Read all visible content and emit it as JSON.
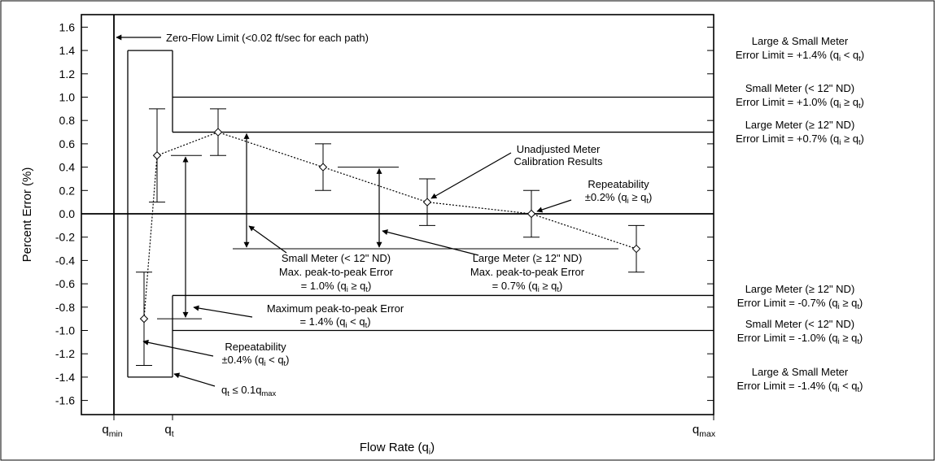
{
  "chart_data": {
    "type": "scatter",
    "ylabel": "Percent Error (%)",
    "xlabel": "Flow Rate (q",
    "xlabel_sub": "i",
    "xlabel_tail": ")",
    "ylim": [
      -1.7,
      1.7
    ],
    "y_ticks": [
      1.6,
      1.4,
      1.2,
      1.0,
      0.8,
      0.6,
      0.4,
      0.2,
      0.0,
      -0.2,
      -0.4,
      -0.6,
      -0.8,
      -1.0,
      -1.2,
      -1.4,
      -1.6
    ],
    "y_tick_labels": [
      "1.6",
      "1.4",
      "1.2",
      "1.0",
      "0.8",
      "0.6",
      "0.4",
      "0.2",
      "0.0",
      "-0.2",
      "-0.4",
      "-0.6",
      "-0.8",
      "-1.0",
      "-1.2",
      "-1.4",
      "-1.6"
    ],
    "x_tick_labels": [
      {
        "main": "q",
        "sub": "min"
      },
      {
        "main": "q",
        "sub": "t"
      },
      {
        "main": "q",
        "sub": "max"
      }
    ],
    "series": [
      {
        "points": [
          {
            "y": -0.9,
            "err": 0.4
          },
          {
            "y": 0.5,
            "err": 0.4
          },
          {
            "y": 0.7,
            "err": 0.2
          },
          {
            "y": 0.4,
            "err": 0.2
          },
          {
            "y": 0.1,
            "err": 0.2
          },
          {
            "y": 0.0,
            "err": 0.2
          },
          {
            "y": -0.3,
            "err": 0.2
          }
        ]
      }
    ],
    "limits": {
      "large_small_upper": 1.4,
      "small_upper": 1.0,
      "large_upper": 0.7,
      "large_lower": -0.7,
      "small_lower": -1.0,
      "large_small_lower": -1.4
    },
    "right_labels": [
      {
        "line1": "Large & Small Meter",
        "line2": "Error Limit = +1.4% (q",
        "sub_a": "i",
        "mid": " < q",
        "sub_b": "t",
        "tail": ")"
      },
      {
        "line1": "Small Meter (< 12\" ND)",
        "line2": "Error Limit = +1.0% (q",
        "sub_a": "i",
        "mid": " ≥ q",
        "sub_b": "t",
        "tail": ")"
      },
      {
        "line1": "Large Meter (≥ 12\" ND)",
        "line2": "Error Limit = +0.7% (q",
        "sub_a": "i",
        "mid": " ≥ q",
        "sub_b": "t",
        "tail": ")"
      },
      {
        "line1": "Large Meter (≥ 12\" ND)",
        "line2": "Error Limit = -0.7% (q",
        "sub_a": "i",
        "mid": " ≥ q",
        "sub_b": "t",
        "tail": ")"
      },
      {
        "line1": "Small Meter (< 12\" ND)",
        "line2": "Error Limit = -1.0% (q",
        "sub_a": "i",
        "mid": " ≥ q",
        "sub_b": "t",
        "tail": ")"
      },
      {
        "line1": "Large & Small Meter",
        "line2": "Error Limit = -1.4% (q",
        "sub_a": "i",
        "mid": " < q",
        "sub_b": "t",
        "tail": ")"
      }
    ],
    "annotations": {
      "zero_flow": "Zero-Flow Limit (<0.02 ft/sec for each path)",
      "unadjusted_1": "Unadjusted Meter",
      "unadjusted_2": "Calibration Results",
      "repeat_hi_1": "Repeatability",
      "repeat_hi_2": "±0.2% (q",
      "repeat_hi_sub_a": "i",
      "repeat_hi_mid": " ≥ q",
      "repeat_hi_sub_b": "t",
      "repeat_hi_tail": ")",
      "small_p2p_1": "Small Meter (< 12\" ND)",
      "small_p2p_2": "Max. peak-to-peak Error",
      "small_p2p_3": "= 1.0% (q",
      "small_p2p_sub_a": "i",
      "small_p2p_mid": " ≥ q",
      "small_p2p_sub_b": "t",
      "small_p2p_tail": ")",
      "large_p2p_1": "Large Meter (≥ 12\" ND)",
      "large_p2p_2": "Max. peak-to-peak Error",
      "large_p2p_3": "= 0.7% (q",
      "large_p2p_sub_a": "i",
      "large_p2p_mid": " ≥ q",
      "large_p2p_sub_b": "t",
      "large_p2p_tail": ")",
      "max_p2p_1": "Maximum peak-to-peak Error",
      "max_p2p_2": "= 1.4% (q",
      "max_p2p_sub_a": "i",
      "max_p2p_mid": " < q",
      "max_p2p_sub_b": "t",
      "max_p2p_tail": ")",
      "repeat_lo_1": "Repeatability",
      "repeat_lo_2": "±0.4% (q",
      "repeat_lo_sub_a": "i",
      "repeat_lo_mid": " < q",
      "repeat_lo_sub_b": "t",
      "repeat_lo_tail": ")",
      "qt_note": "q",
      "qt_note_sub": "t",
      "qt_note_mid": " ≤ 0.1q",
      "qt_note_sub2": "max"
    }
  }
}
